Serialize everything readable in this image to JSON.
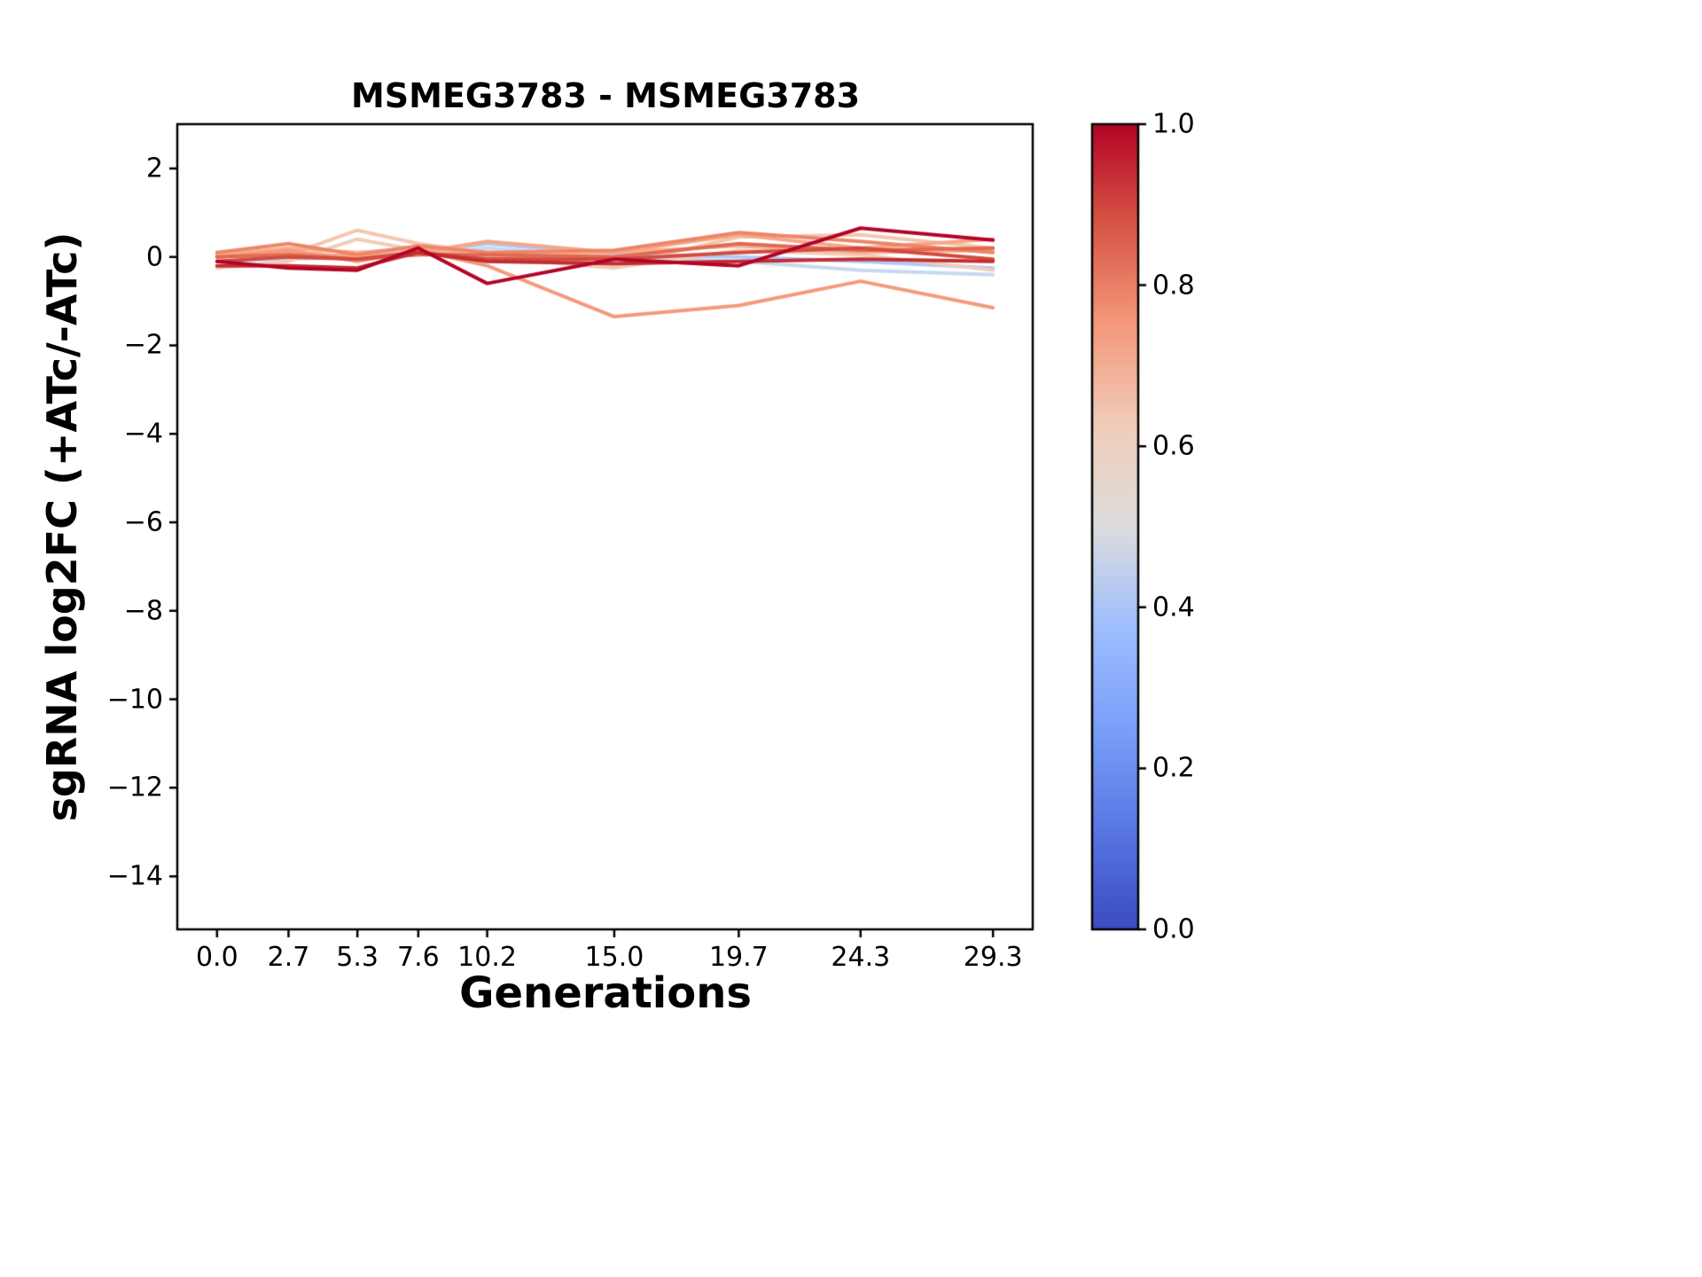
{
  "chart_data": {
    "type": "line",
    "title": "MSMEG3783 - MSMEG3783",
    "xlabel": "Generations",
    "ylabel": "sgRNA log2FC (+ATc/-ATc)",
    "grid": false,
    "x": [
      0.0,
      2.7,
      5.3,
      7.6,
      10.2,
      15.0,
      19.7,
      24.3,
      29.3
    ],
    "xlim": [
      -1.5,
      30.8
    ],
    "ylim": [
      -15.2,
      3.0
    ],
    "xtick_values": [
      0.0,
      2.7,
      5.3,
      7.6,
      10.2,
      15.0,
      19.7,
      24.3,
      29.3
    ],
    "xtick_labels": [
      "0.0",
      "2.7",
      "5.3",
      "7.6",
      "10.2",
      "15.0",
      "19.7",
      "24.3",
      "29.3"
    ],
    "ytick_values": [
      2,
      0,
      -2,
      -4,
      -6,
      -8,
      -10,
      -12,
      -14
    ],
    "ytick_labels": [
      "2",
      "0",
      "−2",
      "−4",
      "−6",
      "−8",
      "−10",
      "−12",
      "−14"
    ],
    "series": [
      {
        "colormap_value": 0.4,
        "color": "#aec9fc",
        "values": [
          0.05,
          0.0,
          0.05,
          0.1,
          0.3,
          0.05,
          0.0,
          -0.1,
          -0.25
        ]
      },
      {
        "colormap_value": 0.45,
        "color": "#c9d8ef",
        "values": [
          -0.1,
          -0.05,
          0.0,
          0.05,
          0.2,
          0.0,
          -0.1,
          -0.3,
          -0.4
        ]
      },
      {
        "colormap_value": 0.55,
        "color": "#f0cdb9",
        "values": [
          -0.25,
          -0.1,
          0.4,
          0.15,
          0.0,
          -0.25,
          0.15,
          0.05,
          -0.3
        ]
      },
      {
        "colormap_value": 0.6,
        "color": "#f3c7ae",
        "values": [
          0.1,
          0.05,
          0.6,
          0.3,
          0.1,
          -0.2,
          0.45,
          0.5,
          0.2
        ]
      },
      {
        "colormap_value": 0.65,
        "color": "#f7b093",
        "values": [
          0.05,
          0.2,
          0.1,
          0.2,
          0.0,
          0.1,
          0.25,
          0.1,
          0.15
        ]
      },
      {
        "colormap_value": 0.7,
        "color": "#f7a687",
        "values": [
          0.0,
          0.1,
          0.0,
          0.1,
          0.35,
          0.1,
          0.5,
          0.2,
          0.4
        ]
      },
      {
        "colormap_value": 0.75,
        "color": "#f49a7b",
        "values": [
          0.0,
          0.15,
          -0.1,
          0.15,
          -0.2,
          -1.35,
          -1.1,
          -0.55,
          -1.15
        ]
      },
      {
        "colormap_value": 0.8,
        "color": "#ee8568",
        "values": [
          0.1,
          0.3,
          0.05,
          0.25,
          0.1,
          0.15,
          0.55,
          0.35,
          0.1
        ]
      },
      {
        "colormap_value": 0.85,
        "color": "#e26952",
        "values": [
          0.0,
          0.05,
          -0.05,
          0.05,
          0.05,
          0.0,
          0.3,
          0.15,
          0.2
        ]
      },
      {
        "colormap_value": 0.9,
        "color": "#d24b40",
        "values": [
          -0.1,
          0.0,
          -0.05,
          0.1,
          -0.05,
          -0.05,
          0.1,
          0.2,
          -0.05
        ]
      },
      {
        "colormap_value": 0.95,
        "color": "#c32e31",
        "values": [
          -0.2,
          -0.2,
          -0.25,
          0.1,
          -0.1,
          -0.15,
          -0.1,
          -0.05,
          -0.1
        ]
      },
      {
        "colormap_value": 1.0,
        "color": "#b40426",
        "values": [
          -0.1,
          -0.25,
          -0.3,
          0.2,
          -0.6,
          -0.05,
          -0.2,
          0.65,
          0.38
        ]
      }
    ],
    "colorbar": {
      "ticks": [
        {
          "value": 1.0,
          "label": "1.0"
        },
        {
          "value": 0.8,
          "label": "0.8"
        },
        {
          "value": 0.6,
          "label": "0.6"
        },
        {
          "value": 0.4,
          "label": "0.4"
        },
        {
          "value": 0.2,
          "label": "0.2"
        },
        {
          "value": 0.0,
          "label": "0.0"
        }
      ],
      "gradient_stops": [
        [
          0.0,
          "#3b4cc0"
        ],
        [
          0.125,
          "#5977e3"
        ],
        [
          0.25,
          "#7b9ff9"
        ],
        [
          0.375,
          "#9ebeff"
        ],
        [
          0.5,
          "#dddddd"
        ],
        [
          0.625,
          "#f1cdba"
        ],
        [
          0.75,
          "#f49a7b"
        ],
        [
          0.875,
          "#d85646"
        ],
        [
          1.0,
          "#b40426"
        ]
      ]
    },
    "axis_color": "#000000",
    "line_width": 4
  }
}
